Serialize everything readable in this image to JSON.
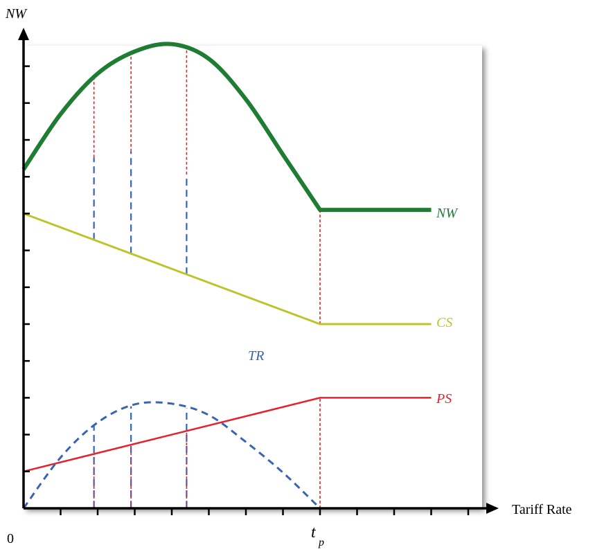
{
  "chart_data": {
    "type": "line",
    "ylabel": "NW",
    "xlabel": "Tariff Rate",
    "x_tick_labels": {
      "origin": "0",
      "tp_main": "t",
      "tp_sub": "p"
    },
    "x_range": [
      0,
      13
    ],
    "y_range": [
      0,
      13
    ],
    "tp": 8,
    "reference_x": [
      1.9,
      2.9,
      4.4
    ],
    "series": [
      {
        "name": "NW",
        "color": "#1e7d32",
        "points": [
          [
            0,
            9.2
          ],
          [
            1,
            10.7
          ],
          [
            2,
            11.8
          ],
          [
            3,
            12.4
          ],
          [
            4,
            12.6
          ],
          [
            5,
            12.2
          ],
          [
            6,
            11.1
          ],
          [
            7,
            9.6
          ],
          [
            8,
            8.1
          ],
          [
            11,
            8.1
          ]
        ]
      },
      {
        "name": "CS",
        "color": "#bcc42a",
        "points": [
          [
            0,
            8.0
          ],
          [
            8,
            5.0
          ],
          [
            11,
            5.0
          ]
        ]
      },
      {
        "name": "PS",
        "color": "#e8202a",
        "points": [
          [
            0,
            1.0
          ],
          [
            8,
            3.0
          ],
          [
            11,
            3.0
          ]
        ]
      },
      {
        "name": "TR",
        "color": "#3a64b0",
        "dashed": true,
        "points": [
          [
            0,
            0.0
          ],
          [
            1,
            1.38
          ],
          [
            2,
            2.33
          ],
          [
            3,
            2.82
          ],
          [
            4,
            2.84
          ],
          [
            5,
            2.53
          ],
          [
            6,
            1.8
          ],
          [
            7,
            0.97
          ],
          [
            8,
            0.0
          ]
        ]
      }
    ]
  }
}
